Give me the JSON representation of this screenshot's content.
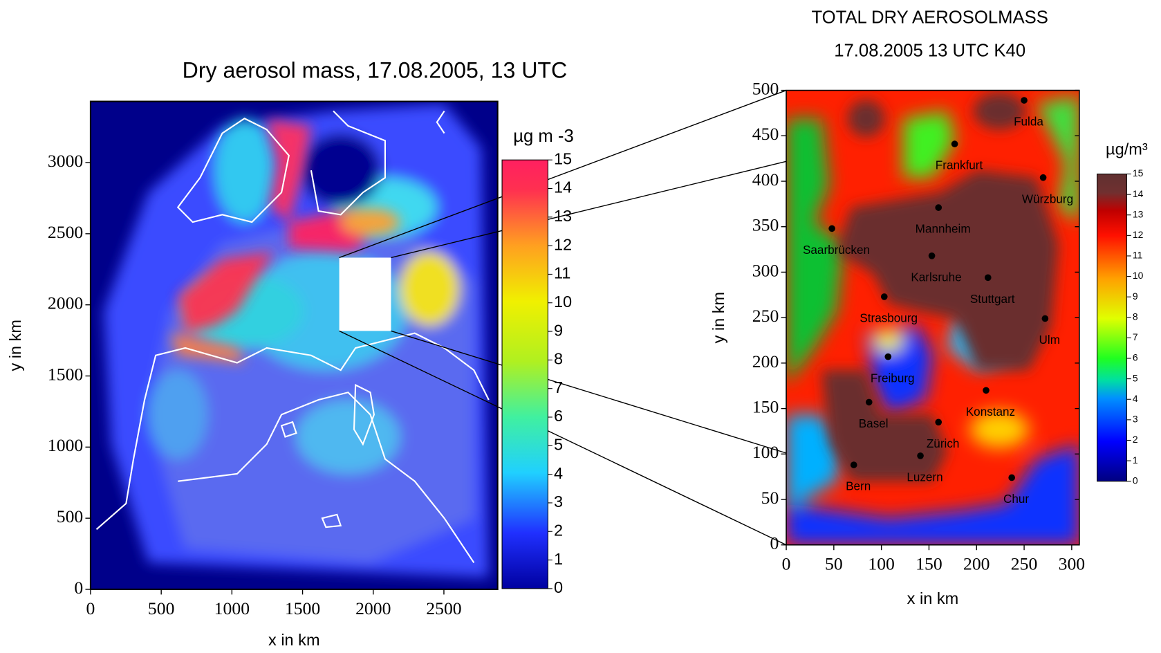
{
  "chart_data": [
    {
      "type": "heatmap",
      "title": "Dry aerosol mass, 17.08.2005, 13 UTC",
      "xlabel": "x in km",
      "ylabel": "y in km",
      "xlim": [
        0,
        2880
      ],
      "ylim": [
        0,
        3430
      ],
      "xticks": [
        0,
        500,
        1000,
        1500,
        2000,
        2500
      ],
      "yticks": [
        0,
        500,
        1000,
        1500,
        2000,
        2500,
        3000
      ],
      "colorbar": {
        "label": "µg m -3",
        "lim": [
          0,
          15
        ],
        "ticks": [
          0,
          1,
          2,
          3,
          4,
          5,
          6,
          7,
          8,
          9,
          10,
          11,
          12,
          13,
          14,
          15
        ]
      }
    },
    {
      "type": "heatmap",
      "title": "TOTAL DRY AEROSOLMASS",
      "subtitle": "17.08.2005 13 UTC K40",
      "xlabel": "x in km",
      "ylabel": "y in km",
      "xlim": [
        0,
        308
      ],
      "ylim": [
        0,
        500
      ],
      "xticks": [
        0,
        50,
        100,
        150,
        200,
        250,
        300
      ],
      "yticks": [
        0,
        50,
        100,
        150,
        200,
        250,
        300,
        350,
        400,
        450,
        500
      ],
      "colorbar": {
        "label": "µg/m³",
        "lim": [
          0,
          15
        ],
        "ticks": [
          0,
          1,
          2,
          3,
          4,
          5,
          6,
          7,
          8,
          9,
          10,
          11,
          12,
          13,
          14,
          15
        ]
      },
      "points": [
        {
          "name": "Fulda",
          "x": 250,
          "y": 489
        },
        {
          "name": "Frankfurt",
          "x": 177,
          "y": 441
        },
        {
          "name": "Würzburg",
          "x": 270,
          "y": 404
        },
        {
          "name": "Mannheim",
          "x": 160,
          "y": 371
        },
        {
          "name": "Saarbrücken",
          "x": 48,
          "y": 348
        },
        {
          "name": "Karlsruhe",
          "x": 153,
          "y": 318
        },
        {
          "name": "Stuttgart",
          "x": 212,
          "y": 294
        },
        {
          "name": "Strasbourg",
          "x": 103,
          "y": 273
        },
        {
          "name": "Ulm",
          "x": 272,
          "y": 249
        },
        {
          "name": "Freiburg",
          "x": 107,
          "y": 207
        },
        {
          "name": "Konstanz",
          "x": 210,
          "y": 170
        },
        {
          "name": "Basel",
          "x": 87,
          "y": 157
        },
        {
          "name": "Zürich",
          "x": 160,
          "y": 135
        },
        {
          "name": "Luzern",
          "x": 141,
          "y": 98
        },
        {
          "name": "Bern",
          "x": 71,
          "y": 88
        },
        {
          "name": "Chur",
          "x": 237,
          "y": 74
        }
      ]
    }
  ]
}
